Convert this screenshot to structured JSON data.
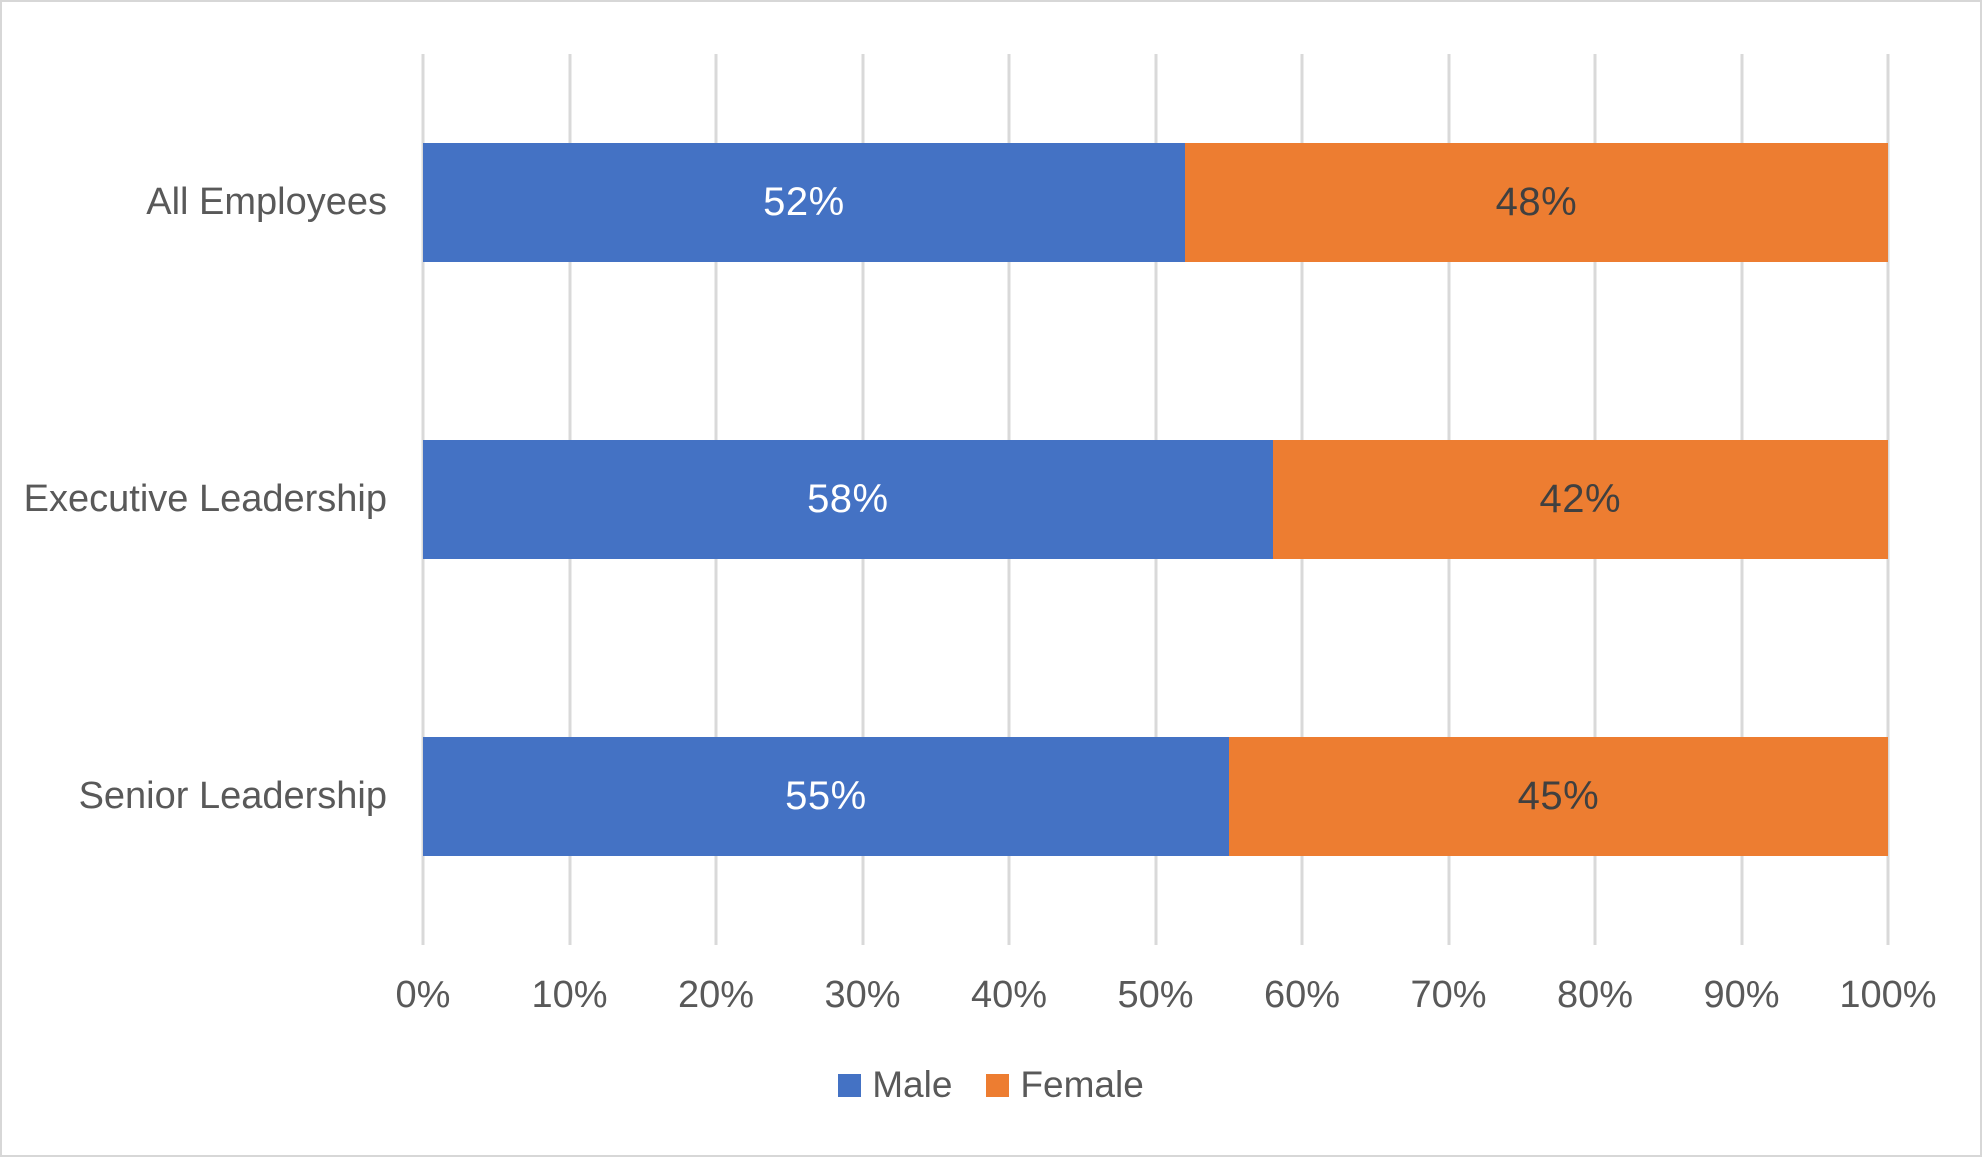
{
  "chart_data": {
    "type": "bar",
    "orientation": "horizontal",
    "stacked": true,
    "title": "",
    "xlabel": "",
    "ylabel": "",
    "categories": [
      "All Employees",
      "Executive Leadership",
      "Senior Leadership"
    ],
    "series": [
      {
        "name": "Male",
        "color": "#4472C4",
        "label_color": "#FFFFFF",
        "values": [
          52,
          58,
          55
        ]
      },
      {
        "name": "Female",
        "color": "#ED7D31",
        "label_color": "#404040",
        "values": [
          48,
          42,
          45
        ]
      }
    ],
    "value_suffix": "%",
    "x_axis": {
      "min": 0,
      "max": 100,
      "ticks": [
        "0%",
        "10%",
        "20%",
        "30%",
        "40%",
        "50%",
        "60%",
        "70%",
        "80%",
        "90%",
        "100%"
      ]
    },
    "grid": true,
    "gridline_color": "#D9D9D9",
    "legend": {
      "position": "bottom",
      "entries": [
        "Male",
        "Female"
      ]
    },
    "text_color": "#595959",
    "background": "#FFFFFF",
    "border_color": "#D7D7D7"
  }
}
